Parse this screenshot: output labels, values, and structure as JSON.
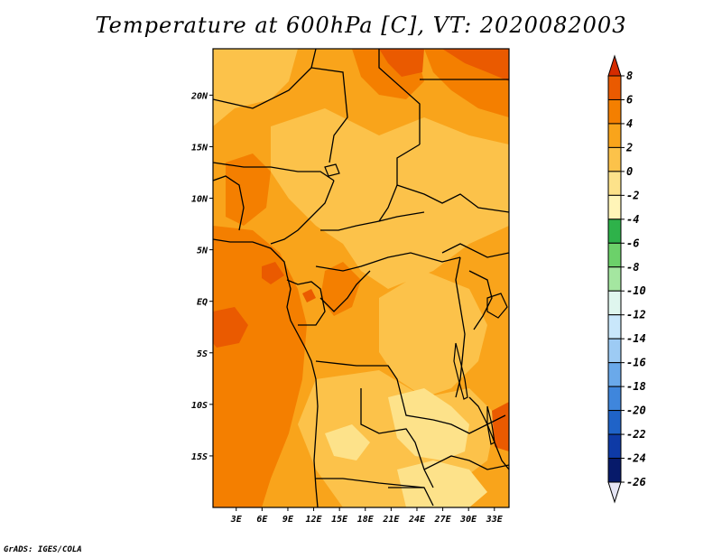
{
  "title": "Temperature at 600hPa [C], VT: 2020082003",
  "credit": "GrADS: IGES/COLA",
  "axes": {
    "x_ticks": [
      "3E",
      "6E",
      "9E",
      "12E",
      "15E",
      "18E",
      "21E",
      "24E",
      "27E",
      "30E",
      "33E"
    ],
    "y_ticks": [
      "20N",
      "15N",
      "10N",
      "5N",
      "EQ",
      "5S",
      "10S",
      "15S"
    ]
  },
  "colorbar": {
    "labels": [
      "8",
      "6",
      "4",
      "2",
      "0",
      "-2",
      "-4",
      "-6",
      "-8",
      "-10",
      "-12",
      "-14",
      "-16",
      "-18",
      "-20",
      "-22",
      "-24",
      "-26"
    ],
    "colors": [
      "#d52b00",
      "#ea5a00",
      "#f47f00",
      "#f9a41b",
      "#fcc24a",
      "#fde28a",
      "#fff5b8",
      "#2eb24a",
      "#6cd16a",
      "#a4e6a0",
      "#dff6ee",
      "#c9e7fb",
      "#9dcbf4",
      "#6aa9ea",
      "#3f86dc",
      "#1f63c8",
      "#0e3aa6",
      "#071a6a",
      "#e5e5f5"
    ]
  },
  "chart_data": {
    "type": "heatmap",
    "title": "Temperature at 600hPa [C], VT: 2020082003",
    "x_ticks": [
      "3E",
      "6E",
      "9E",
      "12E",
      "15E",
      "18E",
      "21E",
      "24E",
      "27E",
      "30E",
      "33E"
    ],
    "y_ticks": [
      "20N",
      "15N",
      "10N",
      "5N",
      "EQ",
      "5S",
      "10S",
      "15S"
    ],
    "xlim": [
      0.3,
      34.7
    ],
    "ylim": [
      -20,
      24.5
    ],
    "colorbar_ticks": [
      8,
      6,
      4,
      2,
      0,
      -2,
      -4,
      -6,
      -8,
      -10,
      -12,
      -14,
      -16,
      -18,
      -20,
      -22,
      -24,
      -26
    ],
    "dominant_range": [
      -2,
      8
    ],
    "warm_regions": [
      {
        "location": "north-east corner",
        "approx_value": 6
      },
      {
        "location": "south-east near 34E 15S",
        "approx_value": 6
      },
      {
        "location": "Atlantic near 2E 3S",
        "approx_value": 5
      }
    ]
  }
}
